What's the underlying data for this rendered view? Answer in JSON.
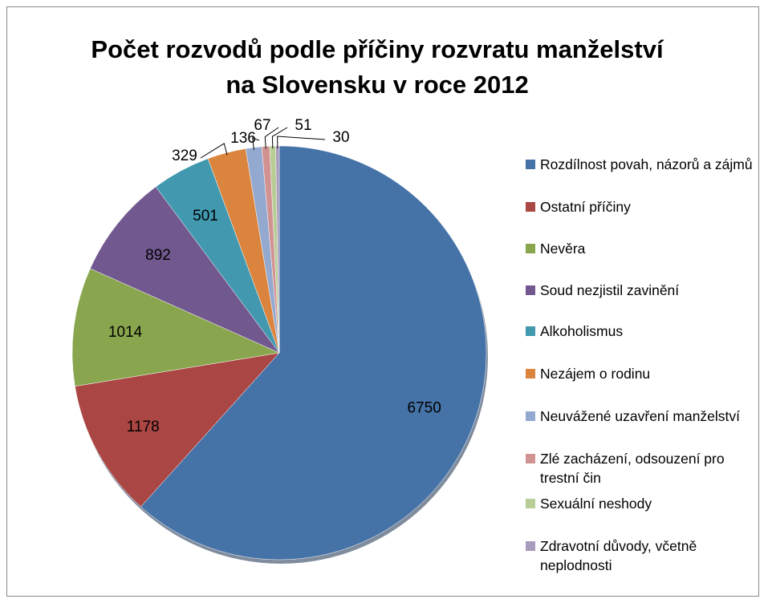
{
  "chart_data": {
    "type": "pie",
    "title": "Počet rozvodů podle příčiny rozvratu manželství na Slovensku v roce 2012",
    "categories": [
      "Rozdílnost povah, názorů a zájmů",
      "Ostatní příčiny",
      "Nevěra",
      "Soud nezjistil zavinění",
      "Alkoholismus",
      "Nezájem o rodinu",
      "Neuvážené uzavření manželství",
      "Zlé zacházení, odsouzení pro trestní čin",
      "Sexuální neshody",
      "Zdravotní důvody, včetně neplodnosti"
    ],
    "values": [
      6750,
      1178,
      1014,
      892,
      501,
      329,
      136,
      67,
      51,
      30
    ],
    "colors": [
      "#4572a7",
      "#aa4643",
      "#89a54e",
      "#71588f",
      "#4198af",
      "#db843d",
      "#93a9cf",
      "#d19392",
      "#b9cd96",
      "#a99bbd"
    ],
    "legend": "right"
  }
}
